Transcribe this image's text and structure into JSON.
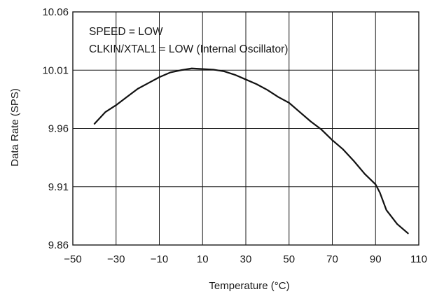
{
  "chart_data": {
    "type": "line",
    "title": "",
    "xlabel": "Temperature (°C)",
    "ylabel": "Data Rate (SPS)",
    "xlim": [
      -50,
      110
    ],
    "ylim": [
      9.86,
      10.06
    ],
    "x_ticks": [
      -50,
      -30,
      -10,
      10,
      30,
      50,
      70,
      90,
      110
    ],
    "x_tick_labels": [
      "−50",
      "−30",
      "−10",
      "10",
      "30",
      "50",
      "70",
      "90",
      "110"
    ],
    "y_ticks": [
      9.86,
      9.91,
      9.96,
      10.01,
      10.06
    ],
    "y_tick_labels": [
      "9.86",
      "9.91",
      "9.96",
      "10.01",
      "10.06"
    ],
    "grid": true,
    "annotations": [
      "SPEED = LOW",
      "CLKIN/XTAL1 = LOW (Internal Oscillator)"
    ],
    "series": [
      {
        "x": [
          -40,
          -35,
          -30,
          -25,
          -20,
          -15,
          -10,
          -5,
          0,
          5,
          10,
          15,
          20,
          25,
          30,
          35,
          40,
          45,
          50,
          55,
          60,
          65,
          70,
          75,
          80,
          85,
          90,
          92,
          95,
          100,
          105
        ],
        "values": [
          9.964,
          9.974,
          9.98,
          9.987,
          9.994,
          9.999,
          10.004,
          10.008,
          10.01,
          10.0115,
          10.011,
          10.0105,
          10.009,
          10.006,
          10.002,
          9.998,
          9.993,
          9.987,
          9.982,
          9.974,
          9.966,
          9.959,
          9.95,
          9.942,
          9.932,
          9.921,
          9.912,
          9.905,
          9.89,
          9.878,
          9.87
        ]
      }
    ],
    "colors": {
      "line": "#111111",
      "grid": "#1a1a1a",
      "text": "#1a1a1a"
    }
  }
}
